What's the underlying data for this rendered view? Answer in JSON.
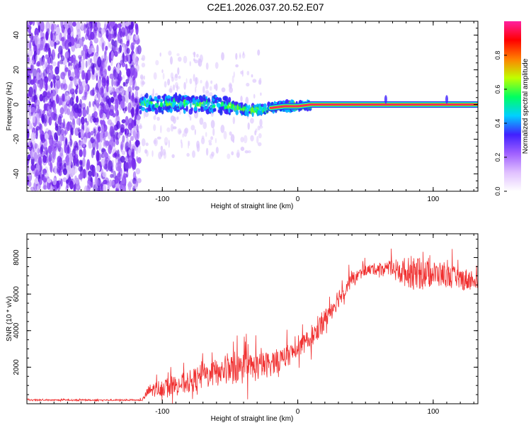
{
  "figure_title": "C2E1.2026.037.20.52.E07",
  "colors": {
    "snr_line": "#f03030",
    "axis": "#000000",
    "background_noise": "#7b2ff0"
  },
  "chart_data": [
    {
      "type": "heatmap",
      "title": "C2E1.2026.037.20.52.E07",
      "xlabel": "Height of straight line (km)",
      "ylabel": "Frequency (Hz)",
      "xlim": [
        -200,
        133
      ],
      "ylim": [
        -50,
        48
      ],
      "xticks": [
        -100,
        0,
        100
      ],
      "yticks": [
        -40,
        -20,
        0,
        20,
        40
      ],
      "noise_region_x": [
        -200,
        -117
      ],
      "doppler_track": [
        {
          "x": -115,
          "y": 1
        },
        {
          "x": -100,
          "y": 0
        },
        {
          "x": -90,
          "y": 1
        },
        {
          "x": -80,
          "y": 0
        },
        {
          "x": -70,
          "y": 0
        },
        {
          "x": -60,
          "y": 0
        },
        {
          "x": -50,
          "y": -1
        },
        {
          "x": -40,
          "y": -3
        },
        {
          "x": -30,
          "y": -3
        },
        {
          "x": -20,
          "y": -2
        },
        {
          "x": -10,
          "y": -1
        },
        {
          "x": 0,
          "y": -1
        },
        {
          "x": 10,
          "y": 0
        },
        {
          "x": 20,
          "y": 0
        },
        {
          "x": 60,
          "y": 0
        },
        {
          "x": 100,
          "y": 0
        },
        {
          "x": 133,
          "y": 0
        }
      ],
      "colorbar": {
        "label": "Normalized spectral amplitude",
        "range": [
          0,
          1
        ],
        "ticks": [
          "0.0",
          "0.2",
          "0.4",
          "0.6",
          "0.8"
        ],
        "tick_values": [
          0.0,
          0.2,
          0.4,
          0.6,
          0.8
        ],
        "colors": [
          "#ffffff",
          "#e0c0ff",
          "#a060ff",
          "#4020ff",
          "#00d0ff",
          "#00ff60",
          "#c0ff00",
          "#ff8000",
          "#ff0000",
          "#ff20a0"
        ]
      }
    },
    {
      "type": "line",
      "title": "",
      "xlabel": "Height of straight line (km)",
      "ylabel": "SNR (10 * v/v)",
      "xlim": [
        -200,
        133
      ],
      "ylim": [
        0,
        9300
      ],
      "xticks": [
        -100,
        0,
        100
      ],
      "yticks": [
        2000,
        4000,
        6000,
        8000
      ],
      "series": [
        {
          "name": "SNR",
          "x": [
            -200,
            -150,
            -115,
            -110,
            -100,
            -90,
            -80,
            -70,
            -60,
            -50,
            -40,
            -30,
            -20,
            -10,
            0,
            10,
            20,
            30,
            40,
            50,
            60,
            70,
            80,
            90,
            100,
            110,
            120,
            133
          ],
          "y": [
            200,
            200,
            200,
            700,
            900,
            1000,
            1200,
            1500,
            1700,
            1900,
            1900,
            2000,
            2200,
            2500,
            3000,
            3600,
            4600,
            5800,
            6800,
            7300,
            7400,
            7300,
            7200,
            7100,
            7100,
            7000,
            6800,
            6800
          ],
          "noise_amplitude": [
            60,
            60,
            60,
            500,
            700,
            800,
            900,
            1000,
            1100,
            1200,
            1200,
            1100,
            1000,
            900,
            700,
            800,
            900,
            800,
            500,
            400,
            500,
            800,
            1200,
            1200,
            1000,
            900,
            900,
            800
          ]
        }
      ]
    }
  ]
}
